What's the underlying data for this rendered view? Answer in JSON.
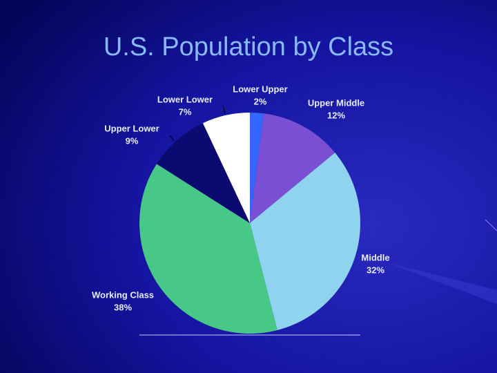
{
  "chart_data": {
    "type": "pie",
    "title": "U.S. Population by Class",
    "categories": [
      "Lower Upper",
      "Upper Middle",
      "Middle",
      "Working Class",
      "Upper Lower",
      "Lower Lower"
    ],
    "values": [
      2,
      12,
      32,
      38,
      9,
      7
    ],
    "value_labels": [
      "2%",
      "12%",
      "32%",
      "38%",
      "9%",
      "7%"
    ],
    "colors": [
      "#3366ff",
      "#7b4fd4",
      "#8fd3ee",
      "#48c887",
      "#0a0a70",
      "#ffffff"
    ]
  }
}
